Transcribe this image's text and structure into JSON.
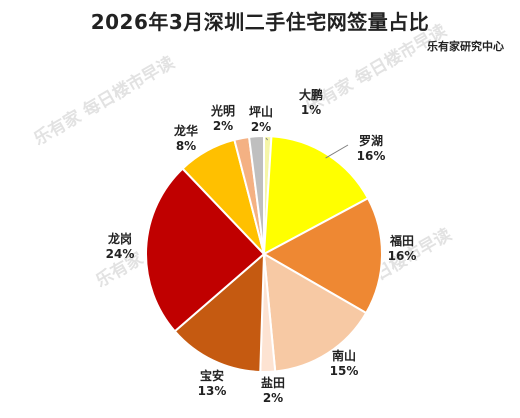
{
  "title": "2026年3月深圳二手住宅网签量占比",
  "source": "乐有家研究中心",
  "watermark": "乐有家 每日楼市早读",
  "chart_data": {
    "type": "pie",
    "title": "2026年3月深圳二手住宅网签量占比",
    "start_angle_deg": 0,
    "direction": "clockwise",
    "slices": [
      {
        "label": "大鹏",
        "value": 1,
        "pct": "1%",
        "color": "#f6f6a8"
      },
      {
        "label": "罗湖",
        "value": 16,
        "pct": "16%",
        "color": "#ffff00"
      },
      {
        "label": "福田",
        "value": 16,
        "pct": "16%",
        "color": "#ee8833"
      },
      {
        "label": "南山",
        "value": 15,
        "pct": "15%",
        "color": "#f7c9a4"
      },
      {
        "label": "盐田",
        "value": 2,
        "pct": "2%",
        "color": "#fde3d2"
      },
      {
        "label": "宝安",
        "value": 13,
        "pct": "13%",
        "color": "#c55a11"
      },
      {
        "label": "龙岗",
        "value": 24,
        "pct": "24%",
        "color": "#c00000"
      },
      {
        "label": "龙华",
        "value": 8,
        "pct": "8%",
        "color": "#ffc000"
      },
      {
        "label": "光明",
        "value": 2,
        "pct": "2%",
        "color": "#f4b183"
      },
      {
        "label": "坪山",
        "value": 2,
        "pct": "2%",
        "color": "#bfbfbf"
      }
    ]
  }
}
